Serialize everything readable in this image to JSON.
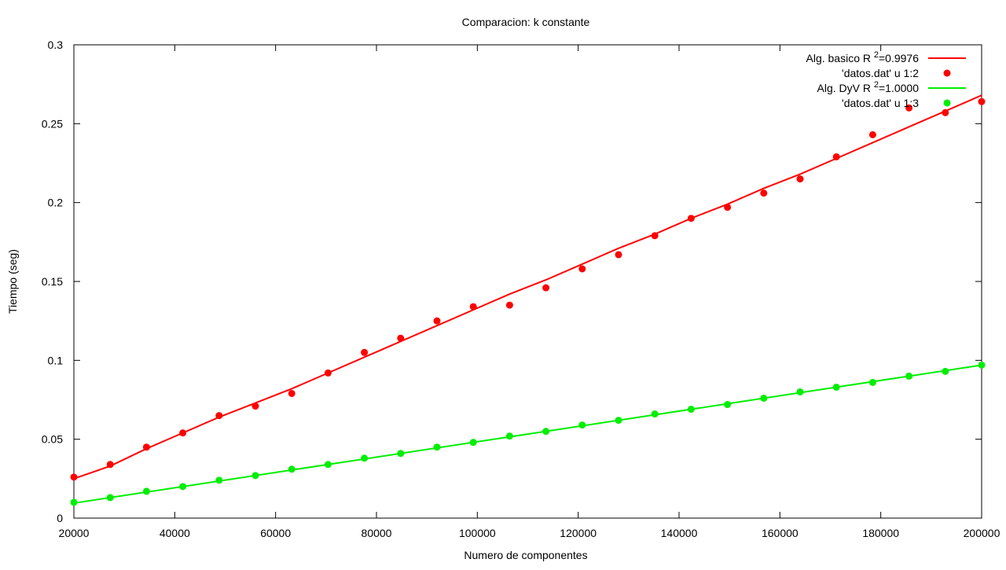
{
  "chart_data": {
    "type": "scatter",
    "title": "Comparacion: k constante",
    "xlabel": "Numero de componentes",
    "ylabel": "Tiempo (seg)",
    "xlim": [
      20000,
      200000
    ],
    "ylim": [
      0,
      0.3
    ],
    "xticks": [
      20000,
      40000,
      60000,
      80000,
      100000,
      120000,
      140000,
      160000,
      180000,
      200000
    ],
    "yticks": [
      0,
      0.05,
      0.1,
      0.15,
      0.2,
      0.25,
      0.3
    ],
    "xtick_labels": [
      "20000",
      "40000",
      "60000",
      "80000",
      "100000",
      "120000",
      "140000",
      "160000",
      "180000",
      "200000"
    ],
    "ytick_labels": [
      "0",
      "0.05",
      "0.1",
      "0.15",
      "0.2",
      "0.25",
      "0.3"
    ],
    "grid": false,
    "legend_position": "top-right",
    "x": [
      20000,
      27200,
      34400,
      41600,
      48800,
      56000,
      63200,
      70400,
      77600,
      84800,
      92000,
      99200,
      106400,
      113600,
      120800,
      128000,
      135200,
      142400,
      149600,
      156800,
      164000,
      171200,
      178400,
      185600,
      192800,
      200000
    ],
    "series": [
      {
        "name": "'datos.dat' u 1:2",
        "kind": "points",
        "color": "#ff0000",
        "values": [
          0.026,
          0.034,
          0.045,
          0.054,
          0.065,
          0.071,
          0.079,
          0.092,
          0.105,
          0.114,
          0.125,
          0.134,
          0.135,
          0.146,
          0.158,
          0.167,
          0.179,
          0.19,
          0.197,
          0.206,
          0.215,
          0.229,
          0.243,
          0.26,
          0.257,
          0.264
        ]
      },
      {
        "name": "'datos.dat' u 1:3",
        "kind": "points",
        "color": "#00ee00",
        "values": [
          0.01,
          0.013,
          0.017,
          0.02,
          0.024,
          0.027,
          0.031,
          0.034,
          0.038,
          0.041,
          0.045,
          0.048,
          0.052,
          0.055,
          0.059,
          0.062,
          0.066,
          0.069,
          0.072,
          0.076,
          0.08,
          0.083,
          0.086,
          0.09,
          0.093,
          0.097
        ]
      }
    ],
    "fits": [
      {
        "name": "Alg. basico R 2=0.9976",
        "label_prefix": "Alg. basico R ",
        "label_sup": "2",
        "label_suffix": "=0.9976",
        "color": "#ff0000",
        "points": [
          [
            20000,
            0.025
          ],
          [
            27200,
            0.033
          ],
          [
            34400,
            0.044
          ],
          [
            41600,
            0.054
          ],
          [
            48800,
            0.064
          ],
          [
            56000,
            0.073
          ],
          [
            63200,
            0.082
          ],
          [
            70400,
            0.092
          ],
          [
            77600,
            0.102
          ],
          [
            84800,
            0.112
          ],
          [
            92000,
            0.122
          ],
          [
            99200,
            0.132
          ],
          [
            106400,
            0.142
          ],
          [
            113600,
            0.151
          ],
          [
            120800,
            0.161
          ],
          [
            128000,
            0.171
          ],
          [
            135200,
            0.18
          ],
          [
            142400,
            0.19
          ],
          [
            149600,
            0.199
          ],
          [
            156800,
            0.209
          ],
          [
            164000,
            0.218
          ],
          [
            171200,
            0.228
          ],
          [
            178400,
            0.238
          ],
          [
            185600,
            0.248
          ],
          [
            192800,
            0.258
          ],
          [
            200000,
            0.268
          ]
        ]
      },
      {
        "name": "Alg. DyV R 2=1.0000",
        "label_prefix": "Alg. DyV R ",
        "label_sup": "2",
        "label_suffix": "=1.0000",
        "color": "#00ee00",
        "points": [
          [
            20000,
            0.0095
          ],
          [
            200000,
            0.097
          ]
        ]
      }
    ]
  }
}
